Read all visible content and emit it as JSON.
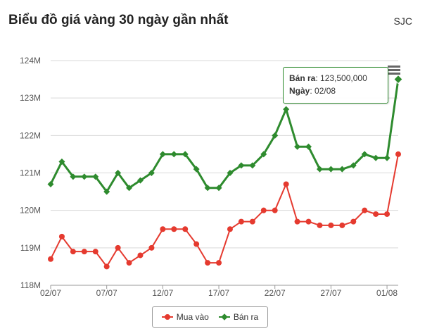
{
  "header": {
    "title": "Biểu đồ giá vàng 30 ngày gần nhất",
    "source": "SJC"
  },
  "colors": {
    "buy": "#e53a2f",
    "sell": "#2e8b2e",
    "grid": "#d9d9d9",
    "axis": "#555555"
  },
  "tooltip": {
    "sell_label": "Bán ra",
    "sell_value": "123,500,000",
    "date_label": "Ngày",
    "date_value": "02/08"
  },
  "chart_data": {
    "type": "line",
    "title": "Biểu đồ giá vàng 30 ngày gần nhất",
    "x": [
      "02/07",
      "03/07",
      "04/07",
      "05/07",
      "06/07",
      "07/07",
      "08/07",
      "09/07",
      "10/07",
      "11/07",
      "12/07",
      "13/07",
      "14/07",
      "15/07",
      "16/07",
      "17/07",
      "18/07",
      "19/07",
      "20/07",
      "21/07",
      "22/07",
      "23/07",
      "24/07",
      "25/07",
      "26/07",
      "27/07",
      "28/07",
      "29/07",
      "30/07",
      "31/07",
      "01/08",
      "02/08"
    ],
    "tick_labels": [
      "02/07",
      "07/07",
      "12/07",
      "17/07",
      "22/07",
      "27/07",
      "01/08"
    ],
    "y_tick_labels": [
      "118M",
      "119M",
      "120M",
      "121M",
      "122M",
      "123M",
      "124M"
    ],
    "ylim": [
      118,
      124
    ],
    "grid": true,
    "legend_position": "bottom",
    "series": [
      {
        "name": "Mua vào",
        "marker": "circle",
        "color": "#e53a2f",
        "values": [
          118.7,
          119.3,
          118.9,
          118.9,
          118.9,
          118.5,
          119.0,
          118.6,
          118.8,
          119.0,
          119.5,
          119.5,
          119.5,
          119.1,
          118.6,
          118.6,
          119.5,
          119.7,
          119.7,
          120.0,
          120.0,
          120.7,
          119.7,
          119.7,
          119.6,
          119.6,
          119.6,
          119.7,
          120.0,
          119.9,
          119.9,
          121.5
        ]
      },
      {
        "name": "Bán ra",
        "marker": "diamond",
        "color": "#2e8b2e",
        "values": [
          120.7,
          121.3,
          120.9,
          120.9,
          120.9,
          120.5,
          121.0,
          120.6,
          120.8,
          121.0,
          121.5,
          121.5,
          121.5,
          121.1,
          120.6,
          120.6,
          121.0,
          121.2,
          121.2,
          121.5,
          122.0,
          122.7,
          121.7,
          121.7,
          121.1,
          121.1,
          121.1,
          121.2,
          121.5,
          121.4,
          121.4,
          123.5
        ]
      }
    ]
  }
}
